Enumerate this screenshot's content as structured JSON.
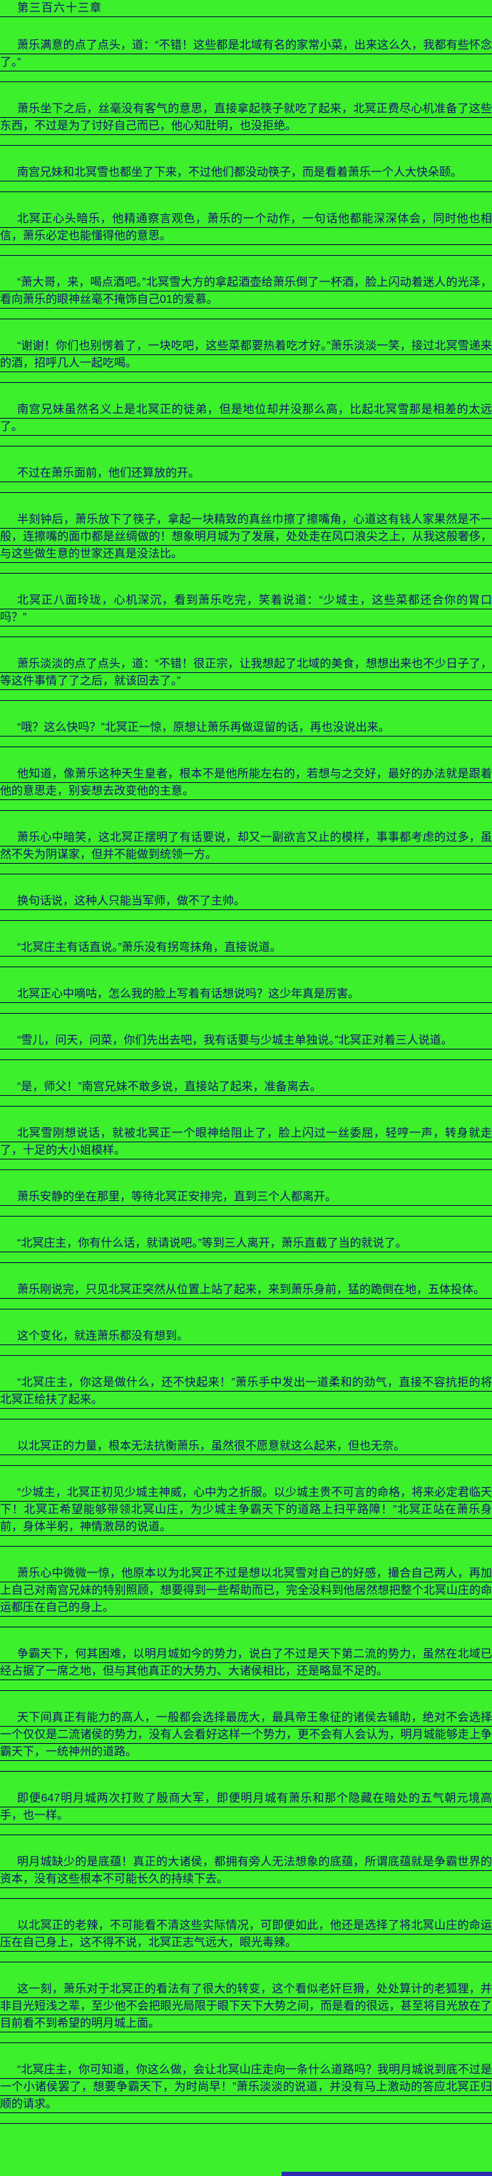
{
  "colors": {
    "background": "#3cf02c",
    "text": "#14146e",
    "rule_line": "#02023a",
    "footer_strip": "#2d2db4"
  },
  "chapter": {
    "title": "第三百六十三章",
    "paragraphs": [
      "萧乐满意的点了点头，道：“不错！这些都是北域有名的家常小菜，出来这么久，我都有些怀念了。”",
      "萧乐坐下之后，丝毫没有客气的意思，直接拿起筷子就吃了起来，北冥正费尽心机准备了这些东西，不过是为了讨好自己而已，他心知肚明，也没拒绝。",
      "南宫兄妹和北冥雪也都坐了下来，不过他们都没动筷子，而是看着萧乐一个人大快朵颐。",
      "北冥正心头暗乐，他精通察言观色，萧乐的一个动作，一句话他都能深深体会，同时他也相信，萧乐必定也能懂得他的意思。",
      "“萧大哥，来，喝点酒吧。”北冥雪大方的拿起酒壶给萧乐倒了一杯酒，脸上闪动着迷人的光泽，看向萧乐的眼神丝毫不掩饰自己01的爱慕。",
      "“谢谢！你们也别愣着了，一块吃吧，这些菜都要热着吃才好。”萧乐淡淡一笑，接过北冥雪递来的酒，招呼几人一起吃喝。",
      "南宫兄妹虽然名义上是北冥正的徒弟，但是地位却并没那么高，比起北冥雪那是相差的太远了。",
      "不过在萧乐面前，他们还算放的开。",
      "半刻钟后，萧乐放下了筷子，拿起一块精致的真丝巾擦了擦嘴角，心道这有钱人家果然是不一般，连擦嘴的面巾都是丝绸做的！想象明月城为了发展，处处走在风口浪尖之上，从我这般奢侈，与这些做生意的世家还真是没法比。",
      "北冥正八面玲珑，心机深沉，看到萧乐吃完，笑着说道：“少城主，这些菜都还合你的胃口吗？”",
      "萧乐淡淡的点了点头，道：“不错！很正宗，让我想起了北域的美食，想想出来也不少日子了，等这件事情了了之后，就该回去了。”",
      "“哦？这么快吗？”北冥正一惊，原想让萧乐再做逗留的话，再也没说出来。",
      "他知道，像萧乐这种天生皇者，根本不是他所能左右的，若想与之交好，最好的办法就是跟着他的意思走，别妄想去改变他的主意。",
      "萧乐心中暗笑，这北冥正摆明了有话要说，却又一副欲言又止的模样，事事都考虑的过多，虽然不失为阴谋家，但并不能做到统领一方。",
      "换句话说，这种人只能当军师，做不了主帅。",
      "“北冥庄主有话直说。”萧乐没有拐弯抹角，直接说道。",
      "北冥正心中嘀咕，怎么我的脸上写着有话想说吗？这少年真是厉害。",
      "“雪儿，问天，问菜，你们先出去吧，我有话要与少城主单独说。”北冥正对着三人说道。",
      "“是，师父！”南宫兄妹不敢多说，直接站了起来，准备离去。",
      "北冥雪刚想说话，就被北冥正一个眼神给阻止了，脸上闪过一丝委屈，轻哼一声，转身就走了，十足的大小姐模样。",
      "萧乐安静的坐在那里，等待北冥正安排完，直到三个人都离开。",
      "“北冥庄主，你有什么话，就请说吧。”等到三人离开，萧乐直截了当的就说了。",
      "萧乐刚说完，只见北冥正突然从位置上站了起来，来到萧乐身前，猛的跪倒在地，五体投体。",
      "这个变化，就连萧乐都没有想到。",
      "“北冥庄主，你这是做什么，还不快起来！”萧乐手中发出一道柔和的劲气，直接不容抗拒的将北冥正给扶了起来。",
      "以北冥正的力量，根本无法抗衡萧乐，虽然很不愿意就这么起来，但也无奈。",
      "“少城主，北冥正初见少城主神威，心中为之折服。以少城主贵不可言的命格，将来必定君临天下！北冥正希望能够带领北冥山庄，为少城主争霸天下的道路上扫平路障！”北冥正站在萧乐身前，身体半躬，神情激昂的说道。",
      "萧乐心中微微一惊，他原本以为北冥正不过是想以北冥雪对自己的好感，撮合自己两人，再加上自己对南宫兄妹的特别照顾，想要得到一些帮助而已，完全没料到他居然想把整个北冥山庄的命运都压在自己的身上。",
      "争霸天下，何其困难，以明月城如今的势力，说白了不过是天下第二流的势力，虽然在北域已经占据了一席之地，但与其他真正的大势力、大诸侯相比，还是略显不足的。",
      "天下间真正有能力的高人，一般都会选择最庞大，最具帝王象征的诸侯去辅助，绝对不会选择一个仅仅是二流诸侯的势力，没有人会看好这样一个势力，更不会有人会认为，明月城能够走上争霸天下，一统神州的道路。",
      "即便647明月城两次打败了殷商大军，即便明月城有萧乐和那个隐藏在暗处的五气朝元境高手，也一样。",
      "明月城缺少的是底蕴！真正的大诸侯，都拥有旁人无法想象的底蕴，所谓底蕴就是争霸世界的资本，没有这些根本不可能长久的持续下去。",
      "以北冥正的老辣，不可能看不清这些实际情况，可即便如此，他还是选择了将北冥山庄的命运压在自己身上，这不得不说，北冥正志气远大，眼光毒辣。",
      "这一刻，萧乐对于北冥正的看法有了很大的转变，这个看似老奸巨猾，处处算计的老狐狸，并非目光短浅之辈，至少他不会把眼光局限于眼下天下大势之间，而是看的很远，甚至将目光放在了目前看不到希望的明月城上面。",
      "“北冥庄主，你可知道，你这么做，会让北冥山庄走向一条什么道路吗？我明月城说到底不过是一个小诸侯罢了，想要争霸天下，为时尚早！”萧乐淡淡的说道，并没有马上激动的答应北冥正归顺的请求。"
    ]
  }
}
